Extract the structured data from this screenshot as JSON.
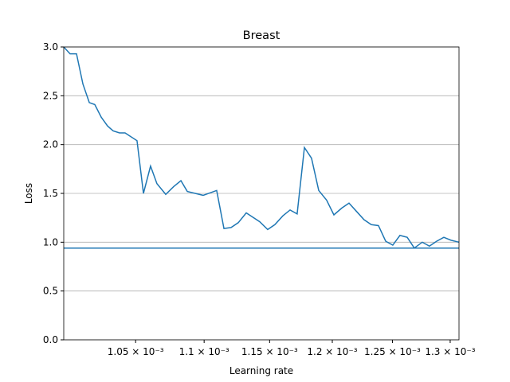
{
  "chart_data": {
    "type": "line",
    "title": "Breast",
    "x_label": "Learning rate",
    "y_label": "Loss",
    "x_scale": "log",
    "grid": "y",
    "color": "#1f77b4",
    "xlim": [
      0.001,
      0.0013078
    ],
    "ylim": [
      0,
      3
    ],
    "xticks": [
      {
        "value": 0.00105,
        "label": "1.05 × 10⁻³"
      },
      {
        "value": 0.0011,
        "label": "1.1 × 10⁻³"
      },
      {
        "value": 0.00115,
        "label": "1.15 × 10⁻³"
      },
      {
        "value": 0.0012,
        "label": "1.2 × 10⁻³"
      },
      {
        "value": 0.00125,
        "label": "1.25 × 10⁻³"
      },
      {
        "value": 0.0013,
        "label": "1.3 × 10⁻³"
      }
    ],
    "yticks": [
      {
        "value": 0,
        "label": "0.0"
      },
      0.5,
      {
        "value": 1,
        "label": "1.0"
      },
      1.5,
      {
        "value": 2,
        "label": "2.0"
      },
      2.5,
      {
        "value": 3,
        "label": "3.0"
      }
    ],
    "reference_line": 0.94,
    "x": [
      0.001,
      0.0010043,
      0.0010087,
      0.0010131,
      0.0010175,
      0.0010213,
      0.0010258,
      0.0010302,
      0.0010341,
      0.0010386,
      0.0010425,
      0.001051,
      0.0010556,
      0.0010607,
      0.0010653,
      0.0010717,
      0.0010775,
      0.0010828,
      0.0010875,
      0.0010993,
      0.0011094,
      0.0011149,
      0.0011203,
      0.0011258,
      0.0011319,
      0.0011423,
      0.0011485,
      0.0011541,
      0.0011604,
      0.0011661,
      0.0011717,
      0.0011775,
      0.0011832,
      0.001189,
      0.0011954,
      0.0012013,
      0.0012078,
      0.0012137,
      0.0012203,
      0.0012262,
      0.0012322,
      0.0012382,
      0.0012443,
      0.0012503,
      0.0012564,
      0.0012626,
      0.0012687,
      0.0012756,
      0.0012818,
      0.0012881,
      0.0012944,
      0.0013007,
      0.0013078
    ],
    "values": [
      3.0,
      2.93,
      2.93,
      2.62,
      2.43,
      2.41,
      2.28,
      2.19,
      2.14,
      2.12,
      2.12,
      2.04,
      1.5,
      1.78,
      1.6,
      1.49,
      1.57,
      1.63,
      1.52,
      1.48,
      1.53,
      1.14,
      1.15,
      1.2,
      1.3,
      1.21,
      1.13,
      1.18,
      1.27,
      1.33,
      1.29,
      1.97,
      1.86,
      1.53,
      1.43,
      1.28,
      1.35,
      1.4,
      1.31,
      1.23,
      1.18,
      1.17,
      1.01,
      0.97,
      1.07,
      1.05,
      0.94,
      1.0,
      0.96,
      1.01,
      1.05,
      1.02,
      1.0
    ]
  }
}
